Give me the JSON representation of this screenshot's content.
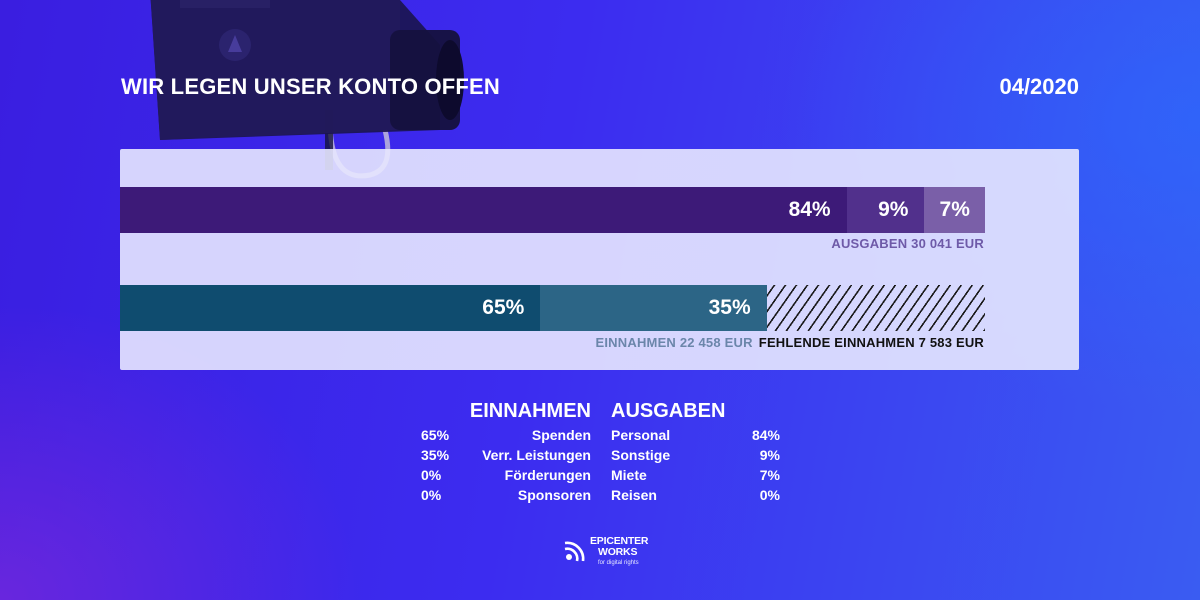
{
  "header": {
    "title": "WIR LEGEN UNSER KONTO OFFEN",
    "date": "04/2020"
  },
  "colors": {
    "ausgaben": [
      "#3d1a78",
      "#51308c",
      "#7a5fa8"
    ],
    "einnahmen": [
      "#0f4c6f",
      "#2c6586"
    ],
    "fehlend_hatch": "#1a1a1a",
    "caption_ausgaben": "#6e5aa8",
    "caption_einnahmen": "#6b86aa",
    "caption_fehlend": "#111111"
  },
  "chart_data": {
    "type": "bar",
    "orientation": "horizontal-stacked",
    "scale_max_eur": 30041,
    "series": [
      {
        "name": "AUSGABEN",
        "caption": "AUSGABEN 30 041 EUR",
        "total_eur": 30041,
        "segments": [
          {
            "label": "84%",
            "value": 84
          },
          {
            "label": "9%",
            "value": 9
          },
          {
            "label": "7%",
            "value": 7
          }
        ]
      },
      {
        "name": "EINNAHMEN",
        "caption": "EINNAHMEN 22 458 EUR",
        "total_eur": 22458,
        "segments": [
          {
            "label": "65%",
            "value": 65
          },
          {
            "label": "35%",
            "value": 35
          }
        ],
        "missing_caption": "FEHLENDE EINNAHMEN 7 583 EUR",
        "missing_eur": 7583
      }
    ]
  },
  "legend": {
    "einnahmen": {
      "heading": "EINNAHMEN",
      "items": [
        {
          "pct": "65%",
          "label": "Spenden"
        },
        {
          "pct": "35%",
          "label": "Verr. Leistungen"
        },
        {
          "pct": "0%",
          "label": "Förderungen"
        },
        {
          "pct": "0%",
          "label": "Sponsoren"
        }
      ]
    },
    "ausgaben": {
      "heading": "AUSGABEN",
      "items": [
        {
          "label": "Personal",
          "pct": "84%"
        },
        {
          "label": "Sonstige",
          "pct": "9%"
        },
        {
          "label": "Miete",
          "pct": "7%"
        },
        {
          "label": "Reisen",
          "pct": "0%"
        }
      ]
    }
  },
  "logo": {
    "line1": "EPICENTER",
    "line2": "WORKS",
    "tagline": "for digital rights"
  }
}
